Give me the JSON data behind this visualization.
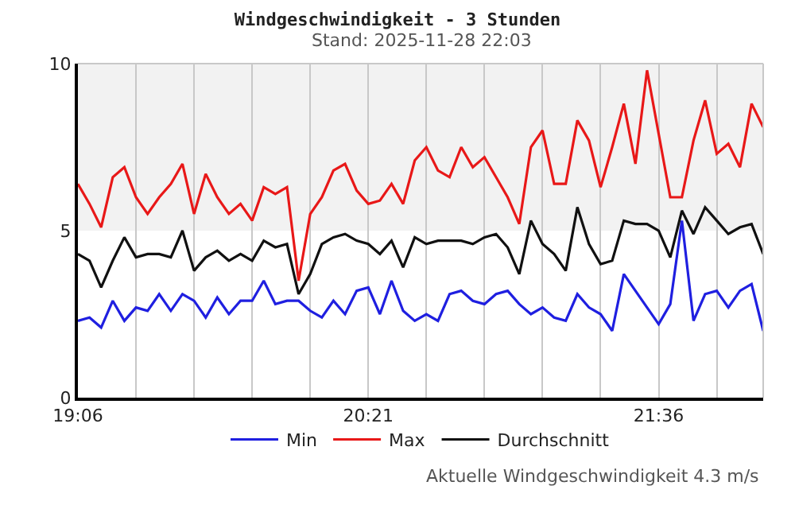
{
  "chart_data": {
    "type": "line",
    "title": "Windgeschwindigkeit - 3 Stunden",
    "subtitle": "Stand: 2025-11-28 22:03",
    "annotations": [
      "Aktuelle Windgeschwindigkeit 4.3 m/s"
    ],
    "x": [
      19.1,
      19.15,
      19.2,
      19.25,
      19.3,
      19.35,
      19.4,
      19.45,
      19.5,
      19.55,
      19.6,
      19.65,
      19.7,
      19.75,
      19.8,
      19.85,
      19.9,
      19.95,
      20.0,
      20.05,
      20.1,
      20.15,
      20.2,
      20.25,
      20.3,
      20.35,
      20.4,
      20.45,
      20.5,
      20.55,
      20.6,
      20.65,
      20.7,
      20.75,
      20.8,
      20.85,
      20.9,
      20.95,
      21.0,
      21.05,
      21.1,
      21.15,
      21.2,
      21.25,
      21.3,
      21.35,
      21.4,
      21.45,
      21.5,
      21.55,
      21.6,
      21.65,
      21.7,
      21.75,
      21.8,
      21.85,
      21.9,
      21.95,
      22.0,
      22.05
    ],
    "series": [
      {
        "name": "Min",
        "color": "#1f1fe0",
        "values": [
          2.3,
          2.4,
          2.1,
          2.9,
          2.3,
          2.7,
          2.6,
          3.1,
          2.6,
          3.1,
          2.9,
          2.4,
          3.0,
          2.5,
          2.9,
          2.9,
          3.5,
          2.8,
          2.9,
          2.9,
          2.6,
          2.4,
          2.9,
          2.5,
          3.2,
          3.3,
          2.5,
          3.5,
          2.6,
          2.3,
          2.5,
          2.3,
          3.1,
          3.2,
          2.9,
          2.8,
          3.1,
          3.2,
          2.8,
          2.5,
          2.7,
          2.4,
          2.3,
          3.1,
          2.7,
          2.5,
          2.0,
          3.7,
          3.2,
          2.7,
          2.2,
          2.8,
          5.3,
          2.3,
          3.1,
          3.2,
          2.7,
          3.2,
          3.4,
          2.0
        ]
      },
      {
        "name": "Max",
        "color": "#e81818",
        "values": [
          6.4,
          5.8,
          5.1,
          6.6,
          6.9,
          6.0,
          5.5,
          6.0,
          6.4,
          7.0,
          5.5,
          6.7,
          6.0,
          5.5,
          5.8,
          5.3,
          6.3,
          6.1,
          6.3,
          3.5,
          5.5,
          6.0,
          6.8,
          7.0,
          6.2,
          5.8,
          5.9,
          6.4,
          5.8,
          7.1,
          7.5,
          6.8,
          6.6,
          7.5,
          6.9,
          7.2,
          6.6,
          6.0,
          5.2,
          7.5,
          8.0,
          6.4,
          6.4,
          8.3,
          7.7,
          6.3,
          7.5,
          8.8,
          7.0,
          9.8,
          7.9,
          6.0,
          6.0,
          7.7,
          8.9,
          7.3,
          7.6,
          6.9,
          8.8,
          8.1
        ]
      },
      {
        "name": "Durchschnitt",
        "color": "#111111",
        "values": [
          4.3,
          4.1,
          3.3,
          4.1,
          4.8,
          4.2,
          4.3,
          4.3,
          4.2,
          5.0,
          3.8,
          4.2,
          4.4,
          4.1,
          4.3,
          4.1,
          4.7,
          4.5,
          4.6,
          3.1,
          3.7,
          4.6,
          4.8,
          4.9,
          4.7,
          4.6,
          4.3,
          4.7,
          3.9,
          4.8,
          4.6,
          4.7,
          4.7,
          4.7,
          4.6,
          4.8,
          4.9,
          4.5,
          3.7,
          5.3,
          4.6,
          4.3,
          3.8,
          5.7,
          4.6,
          4.0,
          4.1,
          5.3,
          5.2,
          5.2,
          5.0,
          4.2,
          5.6,
          4.9,
          5.7,
          5.3,
          4.9,
          5.1,
          5.2,
          4.3
        ]
      }
    ],
    "xlim": [
      19.1,
      22.05
    ],
    "xticks": [
      {
        "value": 19.1,
        "label": "19:06"
      },
      {
        "value": 19.35,
        "label": null
      },
      {
        "value": 19.6,
        "label": null
      },
      {
        "value": 19.85,
        "label": null
      },
      {
        "value": 20.1,
        "label": null
      },
      {
        "value": 20.35,
        "label": "20:21"
      },
      {
        "value": 20.6,
        "label": null
      },
      {
        "value": 20.85,
        "label": null
      },
      {
        "value": 21.1,
        "label": null
      },
      {
        "value": 21.35,
        "label": null
      },
      {
        "value": 21.6,
        "label": "21:36"
      },
      {
        "value": 21.85,
        "label": null
      }
    ],
    "ylim": [
      0,
      10
    ],
    "yticks": [
      0,
      5,
      10
    ],
    "bands": [
      {
        "axis": "y",
        "from": 5,
        "to": 10,
        "color": "#f2f2f2"
      }
    ],
    "grid": "x",
    "legend": "bottom",
    "marker": "none",
    "line_style": "solid"
  }
}
